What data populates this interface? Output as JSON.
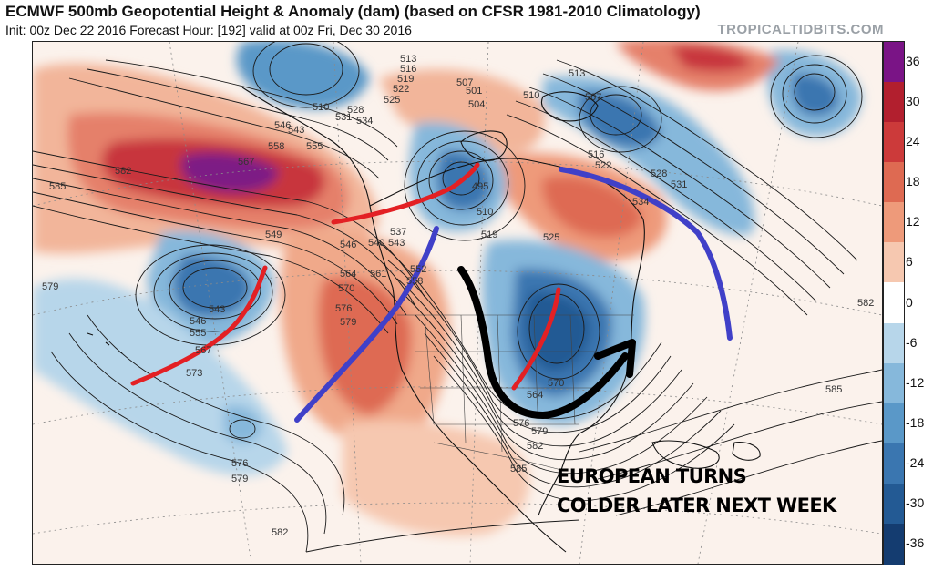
{
  "header": {
    "title": "ECMWF 500mb Geopotential Height & Anomaly (dam) (based on CFSR 1981-2010 Climatology)",
    "subtitle": "Init: 00z Dec 22 2016   Forecast Hour: [192]   valid at 00z Fri, Dec 30 2016",
    "credit": "TROPICALTIDBITS.COM"
  },
  "annotation": {
    "line1": "EUROPEAN TURNS",
    "line2": "COLDER LATER NEXT WEEK"
  },
  "colorbar": {
    "labels": [
      "36",
      "30",
      "24",
      "18",
      "12",
      "6",
      "0",
      "-6",
      "-12",
      "-18",
      "-24",
      "-30",
      "-36"
    ],
    "colors": [
      "#7a1486",
      "#b21f2e",
      "#cc3a3a",
      "#de6a52",
      "#ee9a7a",
      "#f6c8b0",
      "#ffffff",
      "#b7d6ea",
      "#86b8db",
      "#5a98c8",
      "#3a76b0",
      "#235a94",
      "#143c70"
    ]
  },
  "height_labels": {
    "north_pacific": [
      "582",
      "585",
      "549",
      "546",
      "567",
      "558",
      "555",
      "531",
      "528",
      "534",
      "543",
      "510"
    ],
    "west_low": [
      "543",
      "546",
      "555",
      "567",
      "573",
      "579"
    ],
    "south_pacific": [
      "576",
      "579",
      "582"
    ],
    "canada": [
      "513",
      "516",
      "519",
      "522",
      "525",
      "501",
      "504",
      "507",
      "495",
      "510",
      "519",
      "537",
      "540",
      "543",
      "546",
      "552",
      "558",
      "561",
      "564",
      "570",
      "576",
      "579"
    ],
    "atlantic": [
      "513",
      "510",
      "507",
      "516",
      "522",
      "528",
      "531",
      "534",
      "525",
      "582",
      "585"
    ],
    "east_us": [
      "564",
      "570",
      "576",
      "579",
      "582",
      "585"
    ]
  },
  "map": {
    "features": [
      "anomaly-shading",
      "geopotential-height-contours",
      "coastlines",
      "state-borders",
      "lat-lon-grid"
    ],
    "drawn_arrows": [
      "red-trough-axis",
      "blue-ridge-axis",
      "black-flow-arrow"
    ]
  }
}
